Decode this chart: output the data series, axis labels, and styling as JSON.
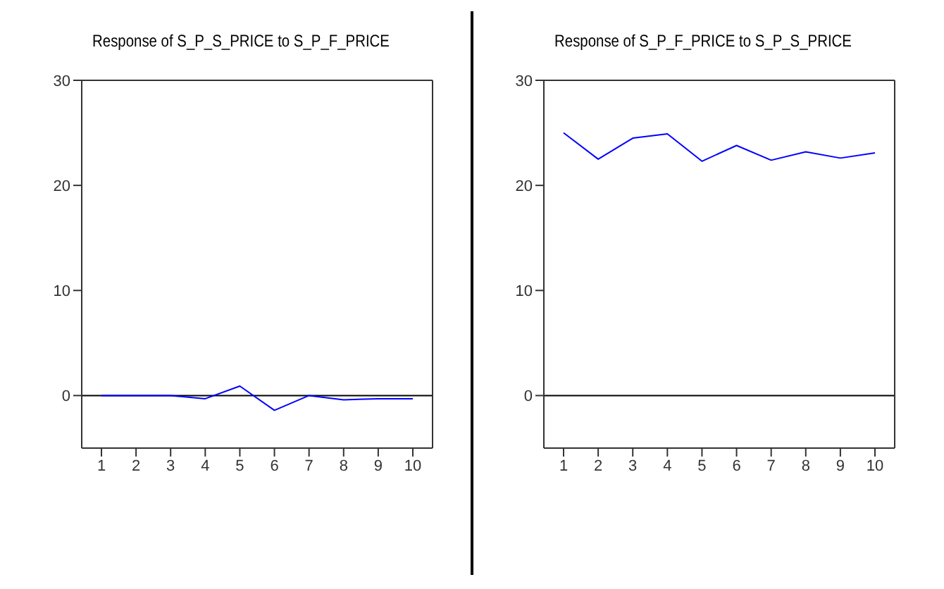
{
  "chart_data": [
    {
      "type": "line",
      "title": "Response of S_P_S_PRICE to S_P_F_PRICE",
      "categories": [
        "1",
        "2",
        "3",
        "4",
        "5",
        "6",
        "7",
        "8",
        "9",
        "10"
      ],
      "series": [
        {
          "color": "#0000ff",
          "values": [
            0,
            0,
            0,
            -0.3,
            0.9,
            -1.4,
            0,
            -0.4,
            -0.3,
            -0.3
          ]
        }
      ],
      "ylim": [
        -5,
        30
      ],
      "yticks": [
        0,
        10,
        20,
        30
      ],
      "ref_lines": [
        {
          "axis": "y",
          "value": 0,
          "color": "#000000"
        }
      ],
      "grid": false,
      "marker": "none",
      "line_style": "solid"
    },
    {
      "type": "line",
      "title": "Response of S_P_F_PRICE to S_P_S_PRICE",
      "categories": [
        "1",
        "2",
        "3",
        "4",
        "5",
        "6",
        "7",
        "8",
        "9",
        "10"
      ],
      "series": [
        {
          "color": "#0000ff",
          "values": [
            25,
            22.5,
            24.5,
            24.9,
            22.3,
            23.8,
            22.4,
            23.2,
            22.6,
            23.1
          ]
        }
      ],
      "ylim": [
        -5,
        30
      ],
      "yticks": [
        0,
        10,
        20,
        30
      ],
      "ref_lines": [
        {
          "axis": "y",
          "value": 0,
          "color": "#000000"
        }
      ],
      "grid": false,
      "marker": "none",
      "line_style": "solid"
    }
  ]
}
